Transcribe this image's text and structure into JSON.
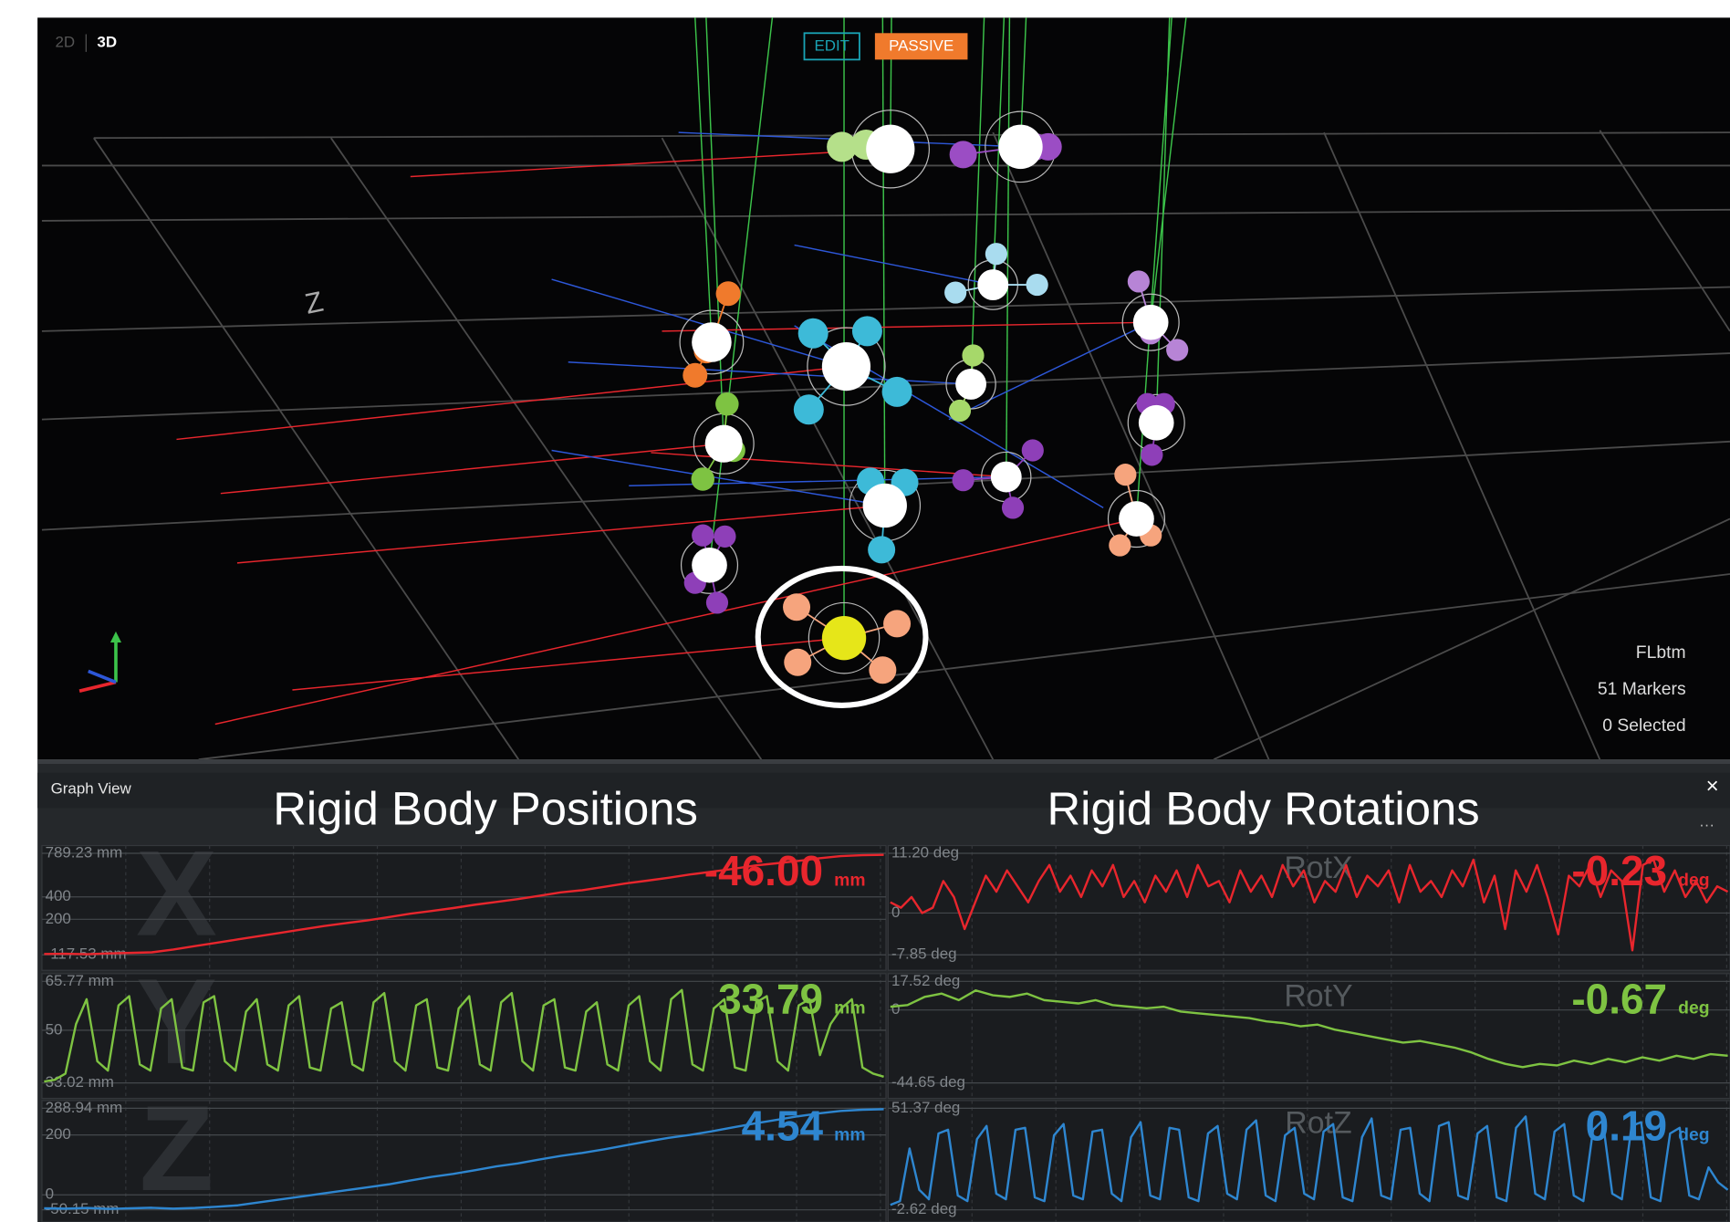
{
  "viewport": {
    "mode_2d": "2D",
    "mode_3d": "3D",
    "edit": "EDIT",
    "passive": "PASSIVE",
    "axis_label": "Z",
    "asset": "FLbtm",
    "markers": "51 Markers",
    "selected": "0 Selected"
  },
  "graph_view": {
    "title": "Graph View",
    "close": "×",
    "menu": "···",
    "groups": [
      "Rigid Body Positions",
      "Rigid Body Rotations"
    ]
  },
  "chart_data": [
    {
      "type": "line",
      "label": "X",
      "color": "#e8262d",
      "readout": "-46.00",
      "unit": "mm",
      "ylim": [
        -117.53,
        789.23
      ],
      "yticks": [
        {
          "value": 789.23,
          "label": "789.23 mm"
        },
        400,
        200,
        {
          "value": -117.53,
          "label": "-117.53 mm"
        }
      ],
      "values": [
        -110,
        -108,
        -112,
        -105,
        -100,
        -95,
        -70,
        -40,
        -10,
        20,
        50,
        80,
        110,
        140,
        165,
        190,
        220,
        250,
        275,
        300,
        330,
        355,
        380,
        410,
        440,
        460,
        490,
        520,
        545,
        570,
        600,
        625,
        650,
        680,
        700,
        720,
        745,
        765,
        772,
        775
      ]
    },
    {
      "type": "line",
      "label": "Y",
      "color": "#7ec342",
      "readout": "33.79",
      "unit": "mm",
      "ylim": [
        33.02,
        65.77
      ],
      "yticks": [
        {
          "value": 65.77,
          "label": "65.77 mm"
        },
        50,
        {
          "value": 33.02,
          "label": "33.02 mm"
        }
      ],
      "values": [
        33.5,
        34,
        36,
        52,
        60,
        40,
        37,
        58,
        61,
        39,
        37,
        57,
        60,
        38,
        37,
        59,
        61,
        40,
        37,
        56,
        60,
        39,
        37,
        58,
        61,
        38,
        37,
        57,
        59,
        39,
        37,
        59,
        62,
        40,
        37,
        58,
        60,
        38,
        37,
        57,
        61,
        39,
        37,
        59,
        62,
        40,
        37,
        58,
        60,
        38,
        37,
        56,
        59,
        39,
        37,
        58,
        61,
        40,
        37,
        60,
        63,
        39,
        37,
        57,
        60,
        38,
        37,
        59,
        61,
        40,
        37,
        58,
        60,
        42,
        52,
        57,
        60,
        38,
        36,
        35
      ]
    },
    {
      "type": "line",
      "label": "Z",
      "color": "#2e86d0",
      "readout": "4.54",
      "unit": "mm",
      "ylim": [
        -50.15,
        288.94
      ],
      "yticks": [
        {
          "value": 288.94,
          "label": "288.94 mm"
        },
        200,
        0,
        {
          "value": -50.15,
          "label": "-50.15 mm"
        }
      ],
      "values": [
        -45,
        -46,
        -44,
        -47,
        -45,
        -43,
        -46,
        -44,
        -40,
        -35,
        -25,
        -15,
        -5,
        5,
        15,
        25,
        35,
        48,
        60,
        70,
        82,
        95,
        105,
        118,
        130,
        140,
        152,
        165,
        178,
        190,
        200,
        212,
        225,
        238,
        250,
        262,
        272,
        280,
        284,
        286
      ]
    },
    {
      "type": "line",
      "label": "RotX",
      "color": "#e8262d",
      "readout": "-0.23",
      "unit": "deg",
      "ylim": [
        -7.85,
        11.2
      ],
      "yticks": [
        {
          "value": 11.2,
          "label": "11.20 deg"
        },
        0,
        {
          "value": -7.85,
          "label": "-7.85 deg"
        }
      ],
      "values": [
        2,
        1,
        3,
        0,
        1,
        6,
        3,
        -3,
        2,
        7,
        4,
        8,
        5,
        2,
        6,
        9,
        4,
        7,
        3,
        8,
        5,
        9,
        3,
        6,
        2,
        7,
        4,
        8,
        3,
        9,
        5,
        6,
        2,
        8,
        4,
        7,
        3,
        9,
        5,
        8,
        2,
        6,
        4,
        9,
        3,
        7,
        5,
        8,
        2,
        9,
        4,
        6,
        3,
        8,
        5,
        10,
        2,
        7,
        -3,
        8,
        4,
        9,
        3,
        -4,
        7,
        5,
        9,
        3,
        8,
        6,
        -7,
        9,
        10,
        4,
        8,
        3,
        6,
        2,
        5,
        4
      ]
    },
    {
      "type": "line",
      "label": "RotY",
      "color": "#7ec342",
      "readout": "-0.67",
      "unit": "deg",
      "ylim": [
        -44.65,
        17.52
      ],
      "yticks": [
        {
          "value": 17.52,
          "label": "17.52 deg"
        },
        0,
        {
          "value": -44.65,
          "label": "-44.65 deg"
        }
      ],
      "values": [
        2,
        3,
        8,
        10,
        6,
        12,
        9,
        8,
        10,
        6,
        5,
        4,
        6,
        3,
        2,
        1,
        2,
        -1,
        -2,
        -3,
        -4,
        -5,
        -7,
        -8,
        -10,
        -9,
        -12,
        -14,
        -16,
        -18,
        -20,
        -19,
        -21,
        -23,
        -26,
        -30,
        -33,
        -35,
        -33,
        -34,
        -31,
        -33,
        -30,
        -32,
        -29,
        -31,
        -28,
        -30,
        -27,
        -28
      ]
    },
    {
      "type": "line",
      "label": "RotZ",
      "color": "#2e86d0",
      "readout": "0.19",
      "unit": "deg",
      "ylim": [
        -2.62,
        51.37
      ],
      "yticks": [
        {
          "value": 51.37,
          "label": "51.37 deg"
        },
        {
          "value": -2.62,
          "label": "-2.62 deg"
        }
      ],
      "values": [
        0,
        2,
        30,
        8,
        3,
        38,
        40,
        5,
        2,
        35,
        42,
        6,
        3,
        40,
        41,
        4,
        2,
        37,
        43,
        5,
        3,
        39,
        40,
        6,
        2,
        36,
        44,
        5,
        3,
        41,
        40,
        4,
        2,
        38,
        42,
        6,
        3,
        40,
        45,
        5,
        2,
        37,
        41,
        6,
        3,
        39,
        43,
        4,
        2,
        36,
        46,
        5,
        3,
        40,
        41,
        6,
        2,
        42,
        44,
        5,
        3,
        38,
        42,
        4,
        2,
        41,
        47,
        6,
        3,
        39,
        43,
        5,
        2,
        40,
        45,
        6,
        3,
        42,
        44,
        4,
        2,
        38,
        41,
        5,
        3,
        20,
        12,
        8
      ]
    }
  ]
}
